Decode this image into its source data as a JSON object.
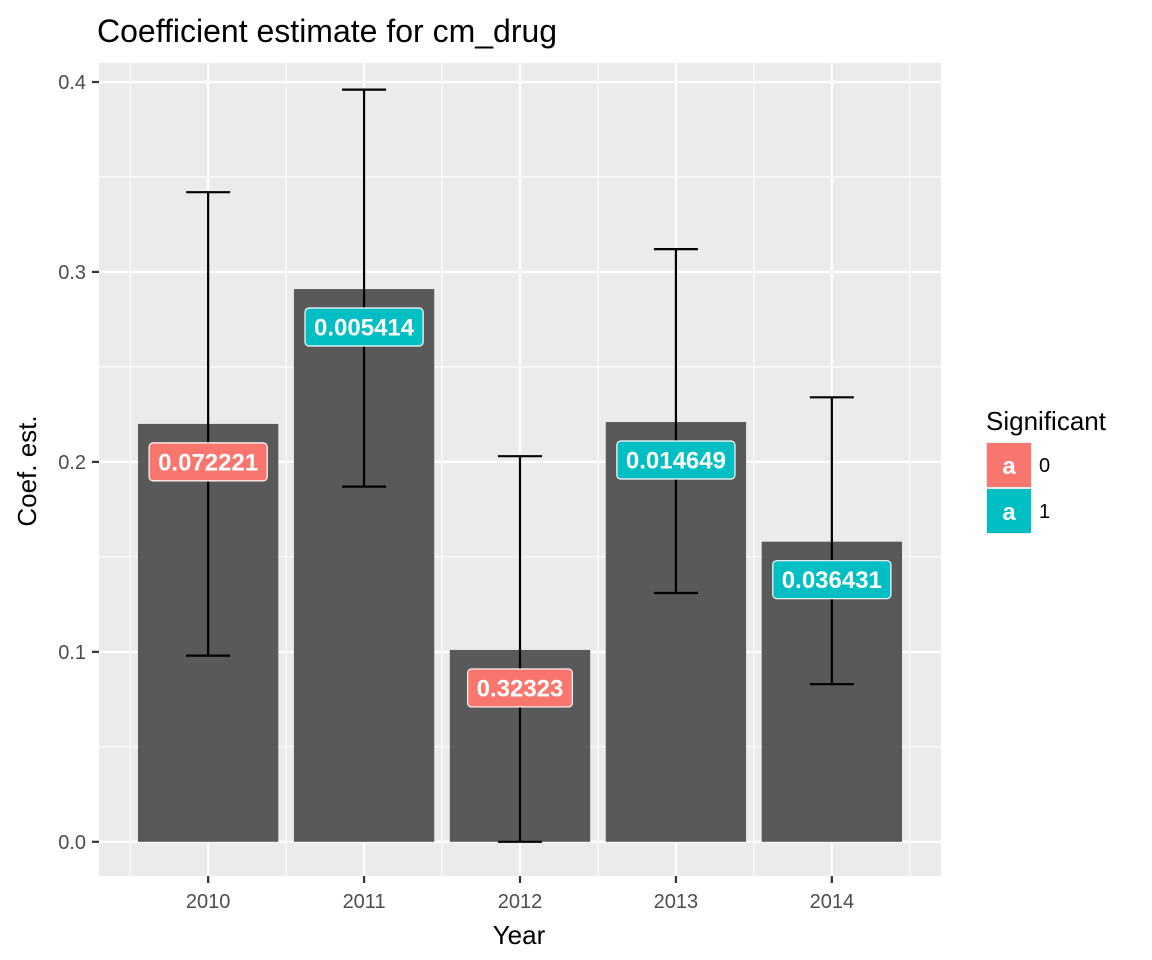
{
  "chart_data": {
    "type": "bar",
    "title": "Coefficient estimate for cm_drug",
    "xlabel": "Year",
    "ylabel": "Coef. est.",
    "categories": [
      "2010",
      "2011",
      "2012",
      "2013",
      "2014"
    ],
    "values": [
      0.22,
      0.291,
      0.101,
      0.221,
      0.158
    ],
    "error_low": [
      0.098,
      0.187,
      0.0,
      0.131,
      0.083
    ],
    "error_high": [
      0.342,
      0.396,
      0.203,
      0.312,
      0.234
    ],
    "labels": [
      "0.072221",
      "0.005414",
      "0.32323",
      "0.014649",
      "0.036431"
    ],
    "label_y": [
      0.2,
      0.271,
      0.081,
      0.201,
      0.138
    ],
    "significant": [
      0,
      1,
      0,
      1,
      1
    ],
    "ylim": [
      -0.018,
      0.41
    ],
    "yticks": [
      0.0,
      0.1,
      0.2,
      0.3,
      0.4
    ],
    "ytick_labels": [
      "0.0",
      "0.1",
      "0.2",
      "0.3",
      "0.4"
    ],
    "grid": true,
    "bar_color": "#595959",
    "panel_background": "#ebebeb",
    "legend": {
      "title": "Significant",
      "position": "right",
      "key_letter": "a",
      "entries": [
        {
          "label": "0",
          "color": "#f8766d"
        },
        {
          "label": "1",
          "color": "#00bfc4"
        }
      ]
    }
  }
}
